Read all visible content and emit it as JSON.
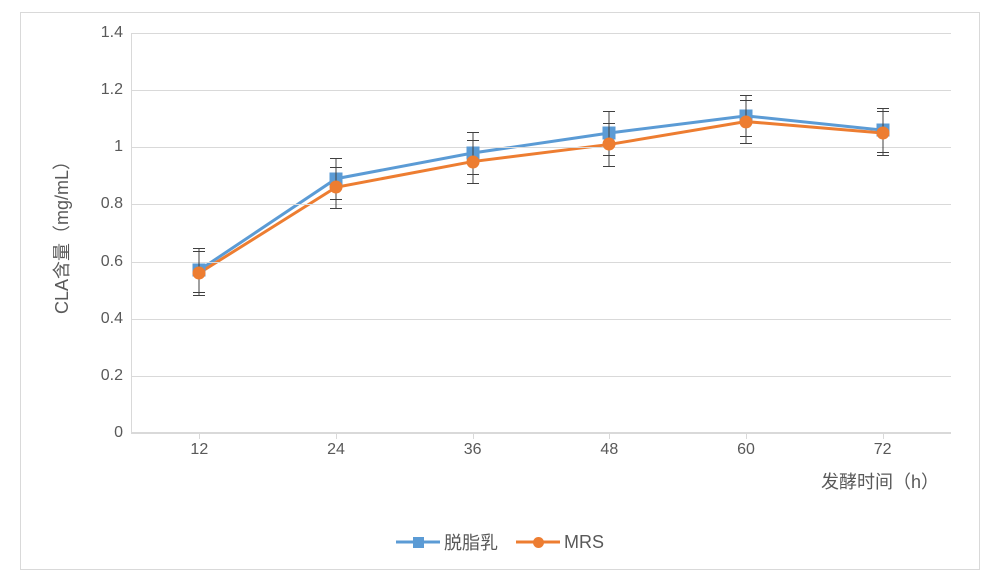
{
  "chart": {
    "type": "line",
    "background_color": "#ffffff",
    "border_color": "#d9d9d9",
    "grid_color": "#d9d9d9",
    "axis_color": "#d9d9d9",
    "text_color": "#595959",
    "label_fontsize": 16,
    "title_fontsize": 18,
    "ylabel": "CLA含量（mg/mL）",
    "xlabel": "发酵时间（h）",
    "ylim": [
      0,
      1.4
    ],
    "ytick_step": 0.2,
    "yticks": [
      0,
      0.2,
      0.4,
      0.6,
      0.8,
      1,
      1.2,
      1.4
    ],
    "categories": [
      "12",
      "24",
      "36",
      "48",
      "60",
      "72"
    ],
    "line_width": 3,
    "marker_size": 11,
    "error_bar_color": "#404040",
    "series": [
      {
        "name": "脱脂乳",
        "color": "#5b9bd5",
        "marker": "square",
        "values": [
          0.57,
          0.89,
          0.98,
          1.05,
          1.11,
          1.06
        ],
        "errors": [
          0.076,
          0.072,
          0.072,
          0.076,
          0.072,
          0.076
        ]
      },
      {
        "name": "MRS",
        "color": "#ed7d31",
        "marker": "circle",
        "values": [
          0.56,
          0.86,
          0.95,
          1.01,
          1.09,
          1.05
        ],
        "errors": [
          0.076,
          0.072,
          0.076,
          0.076,
          0.076,
          0.076
        ]
      }
    ]
  }
}
